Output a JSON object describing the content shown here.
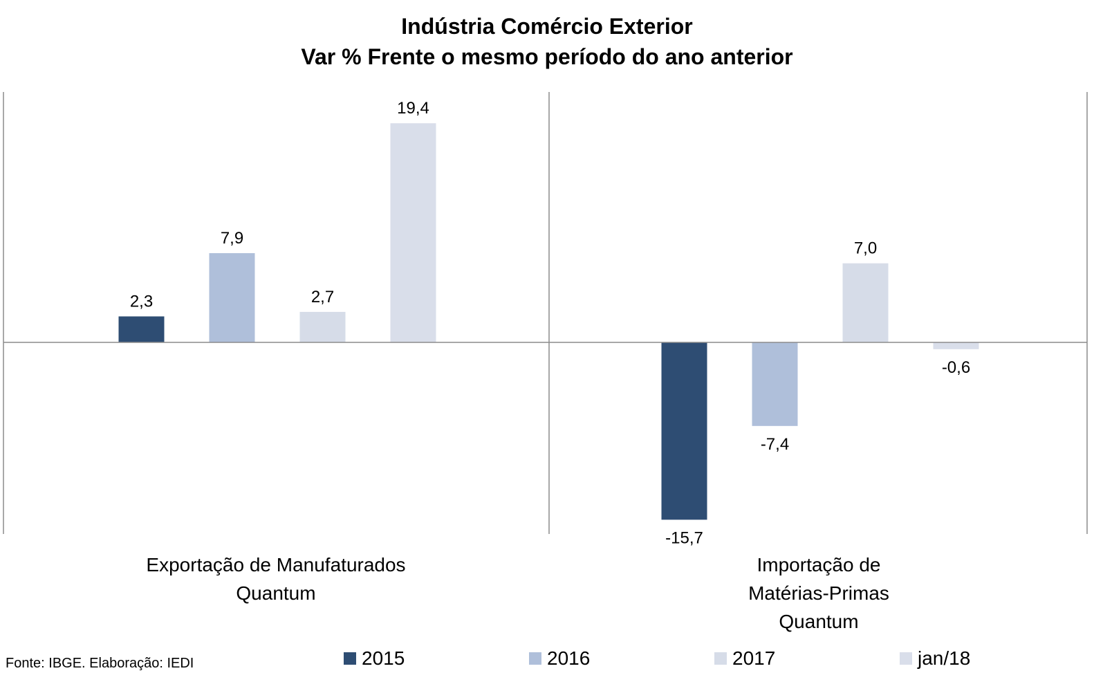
{
  "chart_data": {
    "type": "bar",
    "title": "Indústria Comércio Exterior",
    "subtitle": "Var % Frente o mesmo período do ano anterior",
    "categories": [
      [
        "Exportação de Manufaturados",
        "Quantum"
      ],
      [
        "Importação de",
        "Matérias-Primas",
        "Quantum"
      ]
    ],
    "series": [
      {
        "name": "2015",
        "color": "#2E4D73",
        "values": [
          2.3,
          -15.7
        ],
        "labels": [
          "2,3",
          "-15,7"
        ]
      },
      {
        "name": "2016",
        "color": "#AFBFDA",
        "values": [
          7.9,
          -7.4
        ],
        "labels": [
          "7,9",
          "-7,4"
        ]
      },
      {
        "name": "2017",
        "color": "#D6DCE8",
        "values": [
          2.7,
          7.0
        ],
        "labels": [
          "2,7",
          "7,0"
        ]
      },
      {
        "name": "jan/18",
        "color": "#D9DEEA",
        "values": [
          19.4,
          -0.6
        ],
        "labels": [
          "19,4",
          "-0,6"
        ]
      }
    ],
    "ylim": [
      -17,
      22
    ],
    "grid": false,
    "legend": "bottom"
  },
  "source": "Fonte: IBGE. Elaboração: IEDI"
}
